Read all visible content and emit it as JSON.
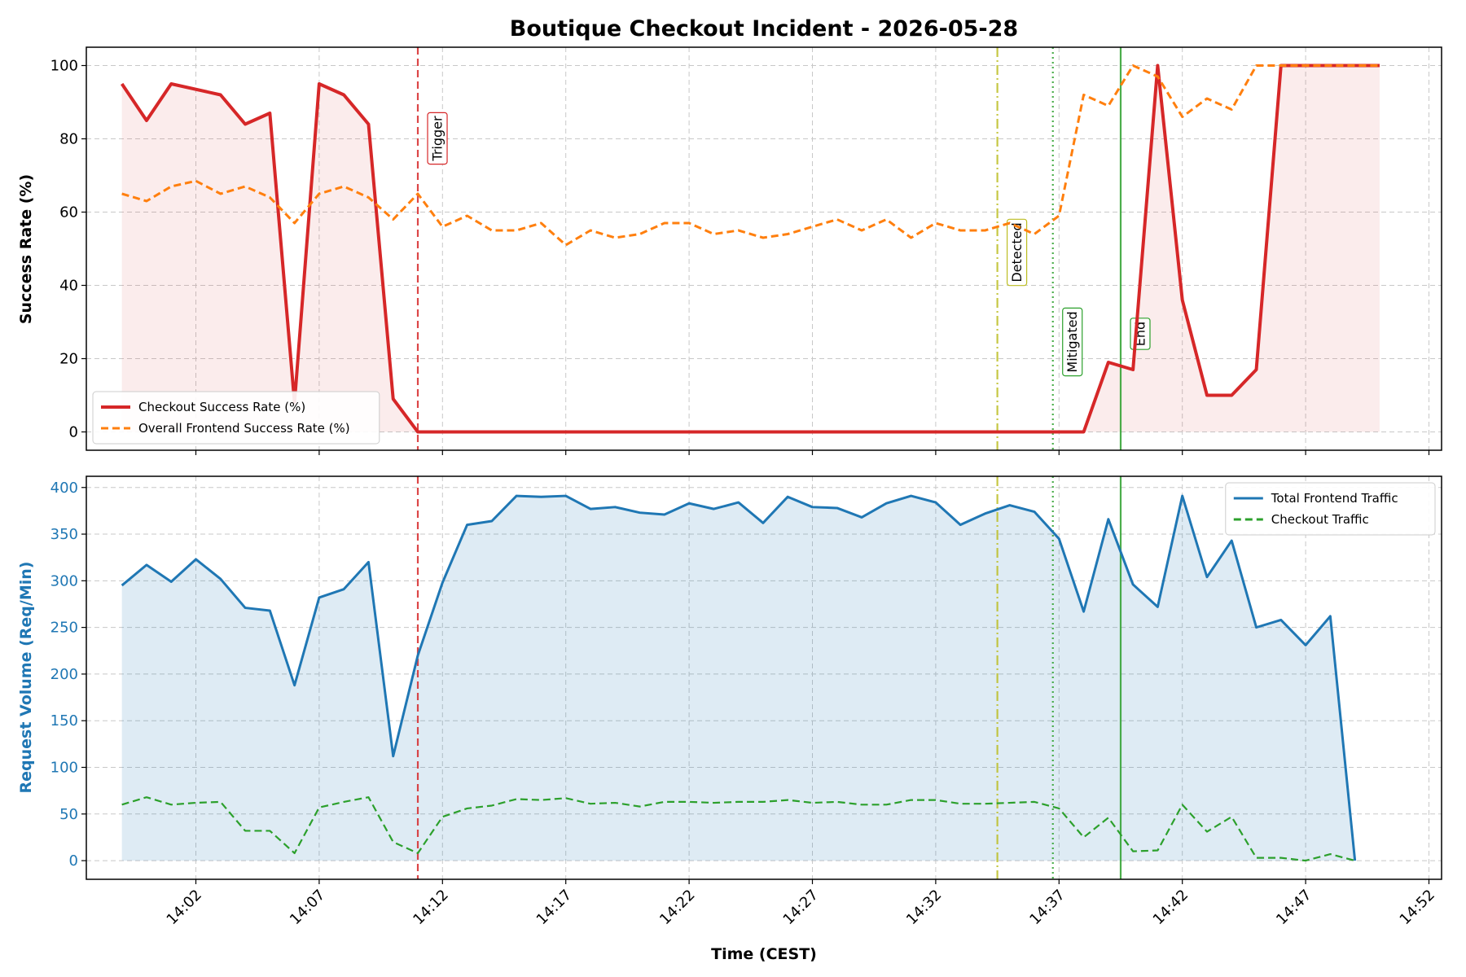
{
  "chart_data": [
    {
      "type": "line",
      "title": "Boutique Checkout Incident - 2026-05-28",
      "xlabel": "",
      "ylabel": "Success Rate (%)",
      "ylim": [
        -5,
        105
      ],
      "yticks": [
        0,
        20,
        40,
        60,
        80,
        100
      ],
      "grid": true,
      "legend_position": "lower-left",
      "x": [
        "13:59",
        "14:00",
        "14:01",
        "14:02",
        "14:03",
        "14:04",
        "14:05",
        "14:06",
        "14:07",
        "14:08",
        "14:09",
        "14:10",
        "14:11",
        "14:12",
        "14:13",
        "14:14",
        "14:15",
        "14:16",
        "14:17",
        "14:18",
        "14:19",
        "14:20",
        "14:21",
        "14:22",
        "14:23",
        "14:24",
        "14:25",
        "14:26",
        "14:27",
        "14:28",
        "14:29",
        "14:30",
        "14:31",
        "14:32",
        "14:33",
        "14:34",
        "14:35",
        "14:36",
        "14:37",
        "14:38",
        "14:39",
        "14:40",
        "14:41",
        "14:42",
        "14:43",
        "14:44",
        "14:45",
        "14:46",
        "14:47",
        "14:48",
        "14:49",
        "14:50",
        "14:51"
      ],
      "series": [
        {
          "name": "Checkout Success Rate (%)",
          "color": "#d62728",
          "style": "solid",
          "fill": true,
          "values": [
            95,
            85,
            95,
            null,
            92,
            84,
            87,
            8,
            95,
            92,
            84,
            9,
            0,
            0,
            0,
            0,
            0,
            0,
            0,
            0,
            0,
            0,
            0,
            0,
            0,
            0,
            0,
            0,
            0,
            0,
            0,
            0,
            0,
            0,
            0,
            0,
            0,
            0,
            0,
            0,
            19,
            17,
            100,
            36,
            10,
            10,
            17,
            100,
            100,
            100,
            100,
            100,
            null
          ]
        },
        {
          "name": "Overall Frontend Success Rate (%)",
          "color": "#ff7f0e",
          "style": "dashed",
          "fill": false,
          "values": [
            65,
            63,
            67,
            68.5,
            65,
            67,
            64,
            57,
            65,
            67,
            64,
            58,
            65,
            56,
            59,
            55,
            55,
            57,
            51,
            55,
            53,
            54,
            57,
            57,
            54,
            55,
            53,
            54,
            56,
            58,
            55,
            58,
            53,
            57,
            55,
            55,
            57,
            54,
            59,
            92,
            89,
            100,
            97,
            86,
            91,
            88,
            100,
            100,
            100,
            100,
            100,
            100,
            null
          ]
        }
      ],
      "markers": [
        {
          "label": "Trigger",
          "time": "14:11",
          "color": "#d62728",
          "style": "dashed"
        },
        {
          "label": "Detected",
          "time": "14:34:30",
          "color": "#bcbd22",
          "style": "dashdot"
        },
        {
          "label": "Mitigated",
          "time": "14:36:45",
          "color": "#2ca02c",
          "style": "dotted"
        },
        {
          "label": "End",
          "time": "14:39:30",
          "color": "#2ca02c",
          "style": "solid"
        }
      ]
    },
    {
      "type": "area",
      "xlabel": "Time (CEST)",
      "ylabel": "Request Volume (Req/Min)",
      "ylim": [
        -20,
        412
      ],
      "yticks": [
        0,
        50,
        100,
        150,
        200,
        250,
        300,
        350,
        400
      ],
      "xticks": [
        "14:02",
        "14:07",
        "14:12",
        "14:17",
        "14:22",
        "14:27",
        "14:32",
        "14:37",
        "14:42",
        "14:47",
        "14:52"
      ],
      "grid": true,
      "legend_position": "upper-right",
      "series": [
        {
          "name": "Total Frontend Traffic",
          "color": "#1f77b4",
          "style": "solid",
          "fill": true,
          "values": [
            295,
            317,
            299,
            323,
            302,
            271,
            268,
            188,
            282,
            291,
            320,
            112,
            220,
            298,
            360,
            364,
            391,
            390,
            391,
            377,
            379,
            373,
            371,
            383,
            377,
            384,
            362,
            390,
            379,
            378,
            368,
            383,
            391,
            384,
            360,
            372,
            381,
            374,
            345,
            267,
            366,
            296,
            272,
            391,
            304,
            343,
            250,
            258,
            231,
            262,
            0
          ]
        },
        {
          "name": "Checkout Traffic",
          "color": "#2ca02c",
          "style": "dashed",
          "fill": false,
          "values": [
            60,
            68,
            60,
            62,
            63,
            32,
            32,
            8,
            57,
            63,
            68,
            20,
            8,
            47,
            56,
            59,
            66,
            65,
            67,
            61,
            62,
            58,
            63,
            63,
            62,
            63,
            63,
            65,
            62,
            63,
            60,
            60,
            65,
            65,
            61,
            61,
            62,
            63,
            56,
            25,
            46,
            10,
            11,
            60,
            31,
            47,
            3,
            3,
            0,
            7,
            0
          ]
        }
      ]
    }
  ]
}
